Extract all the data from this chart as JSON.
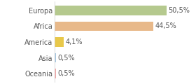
{
  "categories": [
    "Europa",
    "Africa",
    "America",
    "Asia",
    "Oceania"
  ],
  "values": [
    50.5,
    44.5,
    4.1,
    0.5,
    0.5
  ],
  "labels": [
    "50,5%",
    "44,5%",
    "4,1%",
    "0,5%",
    "0,5%"
  ],
  "bar_colors": [
    "#b5c98e",
    "#e8b98a",
    "#e8c84a",
    "#a8c8e0",
    "#f0a8a8"
  ],
  "background_color": "#ffffff",
  "xlim": [
    0,
    62
  ],
  "label_fontsize": 7,
  "tick_fontsize": 7
}
